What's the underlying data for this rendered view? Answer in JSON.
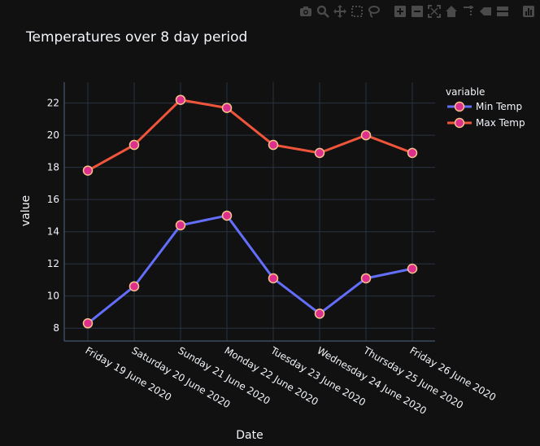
{
  "colors": {
    "background": "#111111",
    "plot_grid": "#283442",
    "zero_line": "#506784",
    "text": "#f2f5fa",
    "modebar_icon": "#4a4a4a",
    "series_min": "#636efa",
    "series_max": "#EF553B",
    "marker_fill": "#dd2f8c",
    "marker_edge": "#f8c28a"
  },
  "modebar": [
    {
      "name": "camera-icon"
    },
    {
      "name": "zoom-icon"
    },
    {
      "name": "pan-icon"
    },
    {
      "name": "box-select-icon"
    },
    {
      "name": "lasso-select-icon"
    },
    {
      "name": "zoom-in-icon"
    },
    {
      "name": "zoom-out-icon"
    },
    {
      "name": "autoscale-icon"
    },
    {
      "name": "reset-axes-icon"
    },
    {
      "name": "spike-lines-icon"
    },
    {
      "name": "hover-closest-icon"
    },
    {
      "name": "hover-compare-icon"
    },
    {
      "name": "plotly-logo-icon"
    }
  ],
  "chart_data": {
    "type": "line",
    "title": "Temperatures over 8 day period",
    "xlabel": "Date",
    "ylabel": "value",
    "categories": [
      "Friday 19 June 2020",
      "Saturday 20 June 2020",
      "Sunday 21 June 2020",
      "Monday 22 June 2020",
      "Tuesday 23 June 2020",
      "Wednesday 24 June 2020",
      "Thursday 25 June 2020",
      "Friday 26 June 2020"
    ],
    "series": [
      {
        "name": "Min Temp",
        "values": [
          8.3,
          10.6,
          14.4,
          15.0,
          11.1,
          8.9,
          11.1,
          11.7
        ],
        "color": "#636efa"
      },
      {
        "name": "Max Temp",
        "values": [
          17.8,
          19.4,
          22.2,
          21.7,
          19.4,
          18.9,
          20.0,
          18.9
        ],
        "color": "#EF553B"
      }
    ],
    "ylim": [
      7.2,
      23.3
    ],
    "yticks": [
      8,
      10,
      12,
      14,
      16,
      18,
      20,
      22
    ],
    "grid": true,
    "legend": {
      "title": "variable",
      "position": "top-right"
    },
    "markers": true
  }
}
